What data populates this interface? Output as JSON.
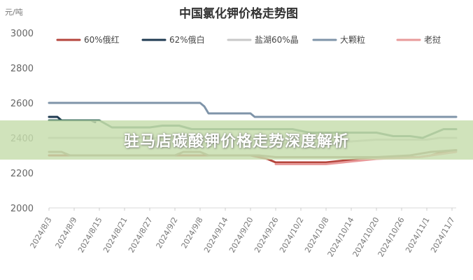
{
  "banner": {
    "text": "驻马店碳酸钾价格走势深度解析"
  },
  "chart_data": {
    "type": "line",
    "title": "中国氯化钾价格走势图",
    "unit": "元/吨",
    "ylim": [
      2000,
      3000
    ],
    "yticks": [
      2000,
      2200,
      2400,
      2600,
      2800,
      3000
    ],
    "grid": false,
    "legend_position": "top",
    "x_start": "2024/8/3",
    "x_end": "2024/11/8",
    "x_tick_labels": [
      "2024/8/3",
      "2024/8/9",
      "2024/8/15",
      "2024/8/21",
      "2024/8/27",
      "2024/9/2",
      "2024/9/8",
      "2024/9/14",
      "2024/9/20",
      "2024/9/26",
      "2024/10/2",
      "2024/10/8",
      "2024/10/14",
      "2024/10/20",
      "2024/10/26",
      "2024/11/1",
      "2024/11/7"
    ],
    "series": [
      {
        "name": "60%俄红",
        "color": "#b5453c",
        "points": [
          [
            "2024/8/3",
            2300
          ],
          [
            "2024/9/20",
            2300
          ],
          [
            "2024/9/24",
            2280
          ],
          [
            "2024/9/26",
            2260
          ],
          [
            "2024/10/8",
            2260
          ],
          [
            "2024/10/12",
            2270
          ],
          [
            "2024/10/16",
            2280
          ],
          [
            "2024/10/20",
            2290
          ],
          [
            "2024/10/30",
            2290
          ],
          [
            "2024/11/2",
            2300
          ],
          [
            "2024/11/5",
            2320
          ],
          [
            "2024/11/8",
            2330
          ]
        ]
      },
      {
        "name": "62%俄白",
        "color": "#1f3a52",
        "points": [
          [
            "2024/8/3",
            2520
          ],
          [
            "2024/8/5",
            2520
          ],
          [
            "2024/8/6",
            2500
          ],
          [
            "2024/8/13",
            2500
          ],
          [
            "2024/8/14",
            2490
          ]
        ]
      },
      {
        "name": "盐湖60%晶",
        "color": "#c8c8c8",
        "points": [
          [
            "2024/8/3",
            2400
          ],
          [
            "2024/9/20",
            2400
          ],
          [
            "2024/9/23",
            2390
          ],
          [
            "2024/9/26",
            2370
          ],
          [
            "2024/10/8",
            2370
          ],
          [
            "2024/10/14",
            2380
          ],
          [
            "2024/10/20",
            2390
          ],
          [
            "2024/11/1",
            2390
          ],
          [
            "2024/11/4",
            2400
          ],
          [
            "2024/11/8",
            2400
          ]
        ]
      },
      {
        "name": "大颗粒",
        "color": "#7f94a9",
        "points": [
          [
            "2024/8/3",
            2600
          ],
          [
            "2024/9/8",
            2600
          ],
          [
            "2024/9/9",
            2580
          ],
          [
            "2024/9/10",
            2540
          ],
          [
            "2024/9/20",
            2540
          ],
          [
            "2024/9/21",
            2520
          ],
          [
            "2024/11/8",
            2520
          ]
        ]
      },
      {
        "name": "老挝",
        "color": "#e89a9a",
        "points": [
          [
            "2024/9/26",
            2250
          ],
          [
            "2024/10/8",
            2250
          ],
          [
            "2024/10/12",
            2260
          ],
          [
            "2024/10/16",
            2270
          ],
          [
            "2024/10/20",
            2280
          ],
          [
            "2024/10/30",
            2290
          ],
          [
            "2024/11/2",
            2300
          ],
          [
            "2024/11/5",
            2310
          ],
          [
            "2024/11/8",
            2320
          ]
        ]
      },
      {
        "color": "#4f7d6b",
        "points": [
          [
            "2024/8/3",
            2500
          ],
          [
            "2024/8/15",
            2500
          ],
          [
            "2024/8/18",
            2460
          ],
          [
            "2024/8/27",
            2460
          ],
          [
            "2024/8/30",
            2470
          ],
          [
            "2024/9/3",
            2470
          ],
          [
            "2024/9/6",
            2450
          ],
          [
            "2024/9/30",
            2450
          ],
          [
            "2024/10/4",
            2430
          ],
          [
            "2024/10/20",
            2430
          ],
          [
            "2024/10/24",
            2410
          ],
          [
            "2024/10/28",
            2410
          ],
          [
            "2024/10/31",
            2400
          ],
          [
            "2024/11/1",
            2410
          ],
          [
            "2024/11/3",
            2430
          ],
          [
            "2024/11/5",
            2450
          ],
          [
            "2024/11/8",
            2450
          ]
        ]
      },
      {
        "color": "#9a8270",
        "points": [
          [
            "2024/8/3",
            2320
          ],
          [
            "2024/8/6",
            2320
          ],
          [
            "2024/8/8",
            2300
          ],
          [
            "2024/9/2",
            2300
          ],
          [
            "2024/9/4",
            2320
          ],
          [
            "2024/9/8",
            2320
          ],
          [
            "2024/9/10",
            2300
          ],
          [
            "2024/9/22",
            2300
          ],
          [
            "2024/9/26",
            2290
          ],
          [
            "2024/10/20",
            2290
          ],
          [
            "2024/10/28",
            2300
          ],
          [
            "2024/11/2",
            2320
          ],
          [
            "2024/11/8",
            2330
          ]
        ]
      }
    ]
  }
}
